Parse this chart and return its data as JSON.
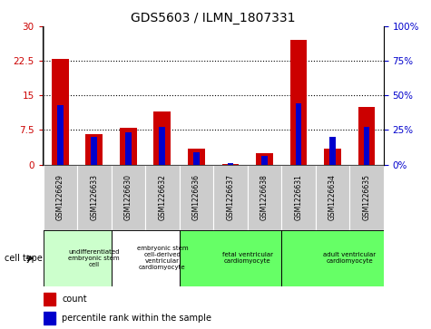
{
  "title": "GDS5603 / ILMN_1807331",
  "samples": [
    "GSM1226629",
    "GSM1226633",
    "GSM1226630",
    "GSM1226632",
    "GSM1226636",
    "GSM1226637",
    "GSM1226638",
    "GSM1226631",
    "GSM1226634",
    "GSM1226635"
  ],
  "count_values": [
    23.0,
    6.5,
    8.0,
    11.5,
    3.5,
    0.05,
    2.5,
    27.0,
    3.5,
    12.5
  ],
  "percentile_values": [
    43,
    20,
    23,
    27,
    9,
    1,
    6,
    44,
    20,
    27
  ],
  "ylim_left": [
    0,
    30
  ],
  "ylim_right": [
    0,
    100
  ],
  "yticks_left": [
    0,
    7.5,
    15,
    22.5,
    30
  ],
  "yticks_right": [
    0,
    25,
    50,
    75,
    100
  ],
  "ytick_left_labels": [
    "0",
    "7.5",
    "15",
    "22.5",
    "30"
  ],
  "ytick_right_labels": [
    "0%",
    "25%",
    "50%",
    "75%",
    "100%"
  ],
  "cell_types": [
    {
      "label": "undifferentiated\nembryonic stem\ncell",
      "start": 0,
      "end": 2,
      "color": "#ccffcc"
    },
    {
      "label": "embryonic stem\ncell-derived\nventricular\ncardiomyocyte",
      "start": 2,
      "end": 4,
      "color": "#ffffff"
    },
    {
      "label": "fetal ventricular\ncardiomyocyte",
      "start": 4,
      "end": 7,
      "color": "#66ff66"
    },
    {
      "label": "adult ventricular\ncardiomyocyte",
      "start": 7,
      "end": 10,
      "color": "#66ff66"
    }
  ],
  "red_color": "#cc0000",
  "blue_color": "#0000cc",
  "gray_color": "#cccccc",
  "count_label": "count",
  "percentile_label": "percentile rank within the sample",
  "cell_type_label": "cell type"
}
